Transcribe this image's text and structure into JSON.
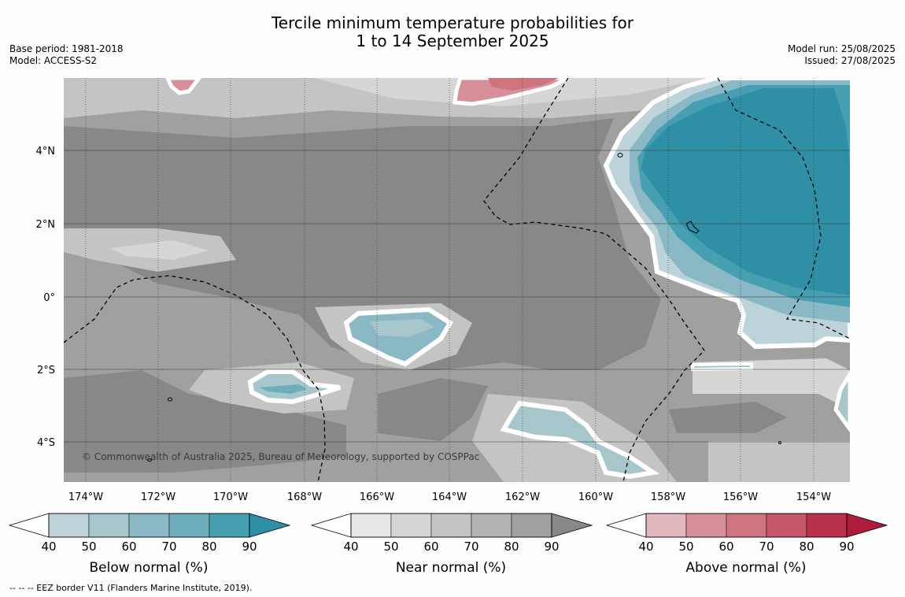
{
  "header": {
    "title_line1": "Tercile minimum temperature probabilities for",
    "title_line2": "1 to 14 September 2025",
    "base_period": "Base period: 1981-2018",
    "model": "Model: ACCESS-S2",
    "model_run": "Model run: 25/08/2025",
    "issued": "Issued: 27/08/2025"
  },
  "map": {
    "lon_labels": [
      "174°W",
      "172°W",
      "170°W",
      "168°W",
      "166°W",
      "164°W",
      "162°W",
      "160°W",
      "158°W",
      "156°W",
      "154°W"
    ],
    "lat_labels": [
      "4°N",
      "2°N",
      "0°",
      "2°S",
      "4°S"
    ],
    "copyright": "© Commonwealth of Australia 2025, Bureau of Meteorology, supported by COSPPac",
    "colors": {
      "below": [
        "#bcd3d9",
        "#a6c6cc",
        "#8ab8c5",
        "#6daeba",
        "#47a0b2",
        "#2e8fa5"
      ],
      "near": [
        "#e6e6e6",
        "#d6d6d6",
        "#c4c4c4",
        "#b2b2b2",
        "#a0a0a0",
        "#888888"
      ],
      "above": [
        "#e1b6bc",
        "#d7909a",
        "#cd747f",
        "#c4566a",
        "#b8304a",
        "#ad1a3c"
      ]
    }
  },
  "colorbars": [
    {
      "label": "Below normal (%)",
      "ticks": [
        "40",
        "50",
        "60",
        "70",
        "80",
        "90"
      ]
    },
    {
      "label": "Near normal (%)",
      "ticks": [
        "40",
        "50",
        "60",
        "70",
        "80",
        "90"
      ]
    },
    {
      "label": "Above normal (%)",
      "ticks": [
        "40",
        "50",
        "60",
        "70",
        "80",
        "90"
      ]
    }
  ],
  "footer": "--  --  -- EEZ border V11 (Flanders Marine Institute, 2019)."
}
